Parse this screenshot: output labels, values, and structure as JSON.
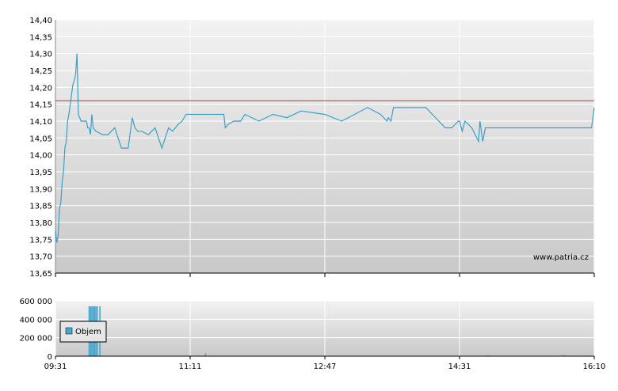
{
  "watermark": "www.patria.cz",
  "legend": {
    "volume_label": "Objem"
  },
  "colors": {
    "price_line": "#3aa0c8",
    "reference_line": "#e05050",
    "volume_bar": "#4aa8d0",
    "grid": "#ffffff"
  },
  "chart_data": [
    {
      "type": "line",
      "name": "price",
      "title": "",
      "ylim": [
        13.65,
        14.4
      ],
      "yticks": [
        "13,65",
        "13,70",
        "13,75",
        "13,80",
        "13,85",
        "13,90",
        "13,95",
        "14,00",
        "14,05",
        "14,10",
        "14,15",
        "14,20",
        "14,25",
        "14,30",
        "14,35",
        "14,40"
      ],
      "xticks": [
        "09:31",
        "11:11",
        "12:47",
        "14:31",
        "16:10"
      ],
      "reference_value": 14.16,
      "grid": true,
      "series": [
        {
          "x": [
            "09:31",
            "09:32",
            "09:33",
            "09:34",
            "09:35",
            "09:36",
            "09:37",
            "09:38",
            "09:39",
            "09:40",
            "09:41",
            "09:42",
            "09:43",
            "09:44",
            "09:45",
            "09:46",
            "09:47",
            "09:48",
            "09:50",
            "09:52",
            "09:54",
            "09:55",
            "09:56",
            "09:57",
            "09:58",
            "09:59",
            "10:01",
            "10:06",
            "10:10",
            "10:15",
            "10:20",
            "10:25",
            "10:28",
            "10:30",
            "10:32",
            "10:35",
            "10:40",
            "10:45",
            "10:50",
            "10:55",
            "10:58",
            "11:00",
            "11:02",
            "11:05",
            "11:08",
            "11:11",
            "11:12",
            "11:13",
            "11:15",
            "11:18",
            "11:22",
            "11:28",
            "11:32",
            "11:35",
            "11:36",
            "11:38",
            "11:42",
            "11:45",
            "11:47",
            "11:50",
            "12:00",
            "12:10",
            "12:20",
            "12:30",
            "12:47",
            "13:00",
            "13:20",
            "13:30",
            "13:35",
            "13:36",
            "13:38",
            "13:40",
            "13:50",
            "14:00",
            "14:05",
            "14:10",
            "14:15",
            "14:20",
            "14:25",
            "14:30",
            "14:31",
            "14:33",
            "14:35",
            "14:40",
            "14:45",
            "14:46",
            "14:48",
            "14:50",
            "15:00",
            "15:10",
            "15:15",
            "15:20",
            "15:25",
            "15:30",
            "15:40",
            "15:50",
            "15:55",
            "15:57",
            "15:58",
            "16:00",
            "16:05",
            "16:08",
            "16:10"
          ],
          "values": [
            13.78,
            13.74,
            13.76,
            13.84,
            13.86,
            13.92,
            13.95,
            14.02,
            14.04,
            14.1,
            14.12,
            14.15,
            14.18,
            14.21,
            14.22,
            14.24,
            14.3,
            14.12,
            14.1,
            14.1,
            14.1,
            14.08,
            14.08,
            14.06,
            14.12,
            14.08,
            14.07,
            14.06,
            14.06,
            14.08,
            14.02,
            14.02,
            14.11,
            14.08,
            14.07,
            14.07,
            14.06,
            14.08,
            14.02,
            14.08,
            14.07,
            14.08,
            14.09,
            14.1,
            14.12,
            14.12,
            14.12,
            14.12,
            14.12,
            14.12,
            14.12,
            14.12,
            14.12,
            14.12,
            14.08,
            14.09,
            14.1,
            14.1,
            14.1,
            14.12,
            14.1,
            14.12,
            14.11,
            14.13,
            14.12,
            14.1,
            14.14,
            14.12,
            14.1,
            14.11,
            14.1,
            14.14,
            14.14,
            14.14,
            14.14,
            14.12,
            14.1,
            14.08,
            14.08,
            14.1,
            14.1,
            14.07,
            14.1,
            14.08,
            14.04,
            14.1,
            14.04,
            14.08,
            14.08,
            14.08,
            14.08,
            14.08,
            14.08,
            14.08,
            14.08,
            14.08,
            14.08,
            14.08,
            14.08,
            14.08,
            14.08,
            14.08,
            14.14
          ]
        }
      ]
    },
    {
      "type": "bar",
      "name": "volume",
      "ylim": [
        0,
        600000
      ],
      "yticks": [
        "0",
        "200 000",
        "400 000",
        "600 000"
      ],
      "xticks": [
        "09:31",
        "11:11",
        "12:47",
        "14:31",
        "16:10"
      ],
      "legend": "Objem",
      "grid": true,
      "series": [
        {
          "x": [
            "09:56",
            "09:57",
            "09:58",
            "09:59",
            "10:00",
            "10:01",
            "10:02",
            "10:04",
            "11:22",
            "14:52",
            "15:47",
            "15:48"
          ],
          "values": [
            540000,
            540000,
            540000,
            540000,
            540000,
            540000,
            540000,
            540000,
            30000,
            8000,
            12000,
            8000
          ]
        }
      ]
    }
  ]
}
